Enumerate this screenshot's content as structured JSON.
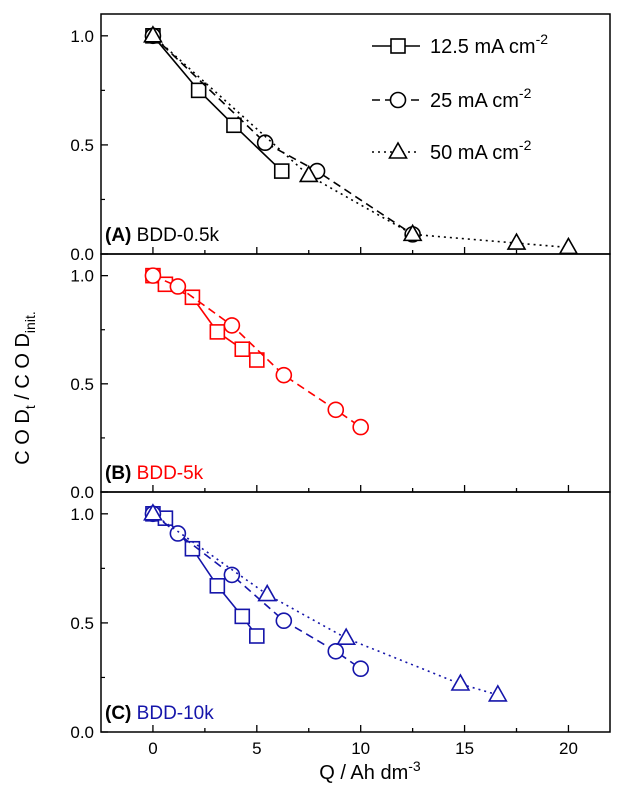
{
  "figure": {
    "x_label_main": "Q / Ah dm",
    "x_label_sup": "-3",
    "y_label_parts": {
      "a": "C O D",
      "a_sub": "t",
      "b": " / C O D",
      "b_sub": "init."
    }
  },
  "legend": [
    {
      "label_main": "12.5 mA cm",
      "label_sup": "-2",
      "style": "solid",
      "marker": "square"
    },
    {
      "label_main": "25 mA cm",
      "label_sup": "-2",
      "style": "dashed",
      "marker": "circle"
    },
    {
      "label_main": "50 mA cm",
      "label_sup": "-2",
      "style": "dotted",
      "marker": "triangle"
    }
  ],
  "chart_data": [
    {
      "type": "line",
      "panel_id": "(A)",
      "panel_name": "BDD-0.5k",
      "color": "#000000",
      "xlim": [
        -2.5,
        22
      ],
      "ylim": [
        0,
        1.1
      ],
      "y_ticks": [
        "0.0",
        "0.5",
        "1.0"
      ],
      "series": [
        {
          "name": "12.5 mA cm-2",
          "marker": "square",
          "style": "solid",
          "x": [
            0,
            2.2,
            3.9,
            6.2
          ],
          "y": [
            1.0,
            0.75,
            0.59,
            0.38
          ]
        },
        {
          "name": "25 mA cm-2",
          "marker": "circle",
          "style": "dashed",
          "x": [
            0,
            5.4,
            7.9,
            12.5
          ],
          "y": [
            1.0,
            0.51,
            0.38,
            0.09
          ]
        },
        {
          "name": "50 mA cm-2",
          "marker": "triangle",
          "style": "dotted",
          "x": [
            0,
            7.5,
            12.5,
            17.5,
            20.0
          ],
          "y": [
            1.0,
            0.36,
            0.09,
            0.05,
            0.03
          ]
        }
      ]
    },
    {
      "type": "line",
      "panel_id": "(B)",
      "panel_name": "BDD-5k",
      "color": "#ff0000",
      "xlim": [
        -2.5,
        22
      ],
      "ylim": [
        0,
        1.1
      ],
      "y_ticks": [
        "0.0",
        "0.5",
        "1.0"
      ],
      "series": [
        {
          "name": "12.5 mA cm-2",
          "marker": "square",
          "style": "solid",
          "x": [
            0,
            0.6,
            1.9,
            3.1,
            4.3,
            5.0
          ],
          "y": [
            1.0,
            0.96,
            0.9,
            0.74,
            0.66,
            0.61
          ]
        },
        {
          "name": "25 mA cm-2",
          "marker": "circle",
          "style": "dashed",
          "x": [
            0,
            1.2,
            3.8,
            6.3,
            8.8,
            10.0
          ],
          "y": [
            1.0,
            0.95,
            0.77,
            0.54,
            0.38,
            0.3
          ]
        }
      ]
    },
    {
      "type": "line",
      "panel_id": "(C)",
      "panel_name": "BDD-10k",
      "color": "#1515aa",
      "xlim": [
        -2.5,
        22
      ],
      "ylim": [
        0,
        1.1
      ],
      "y_ticks": [
        "0.0",
        "0.5",
        "1.0"
      ],
      "x_ticks": [
        "0",
        "5",
        "10",
        "15",
        "20"
      ],
      "series": [
        {
          "name": "12.5 mA cm-2",
          "marker": "square",
          "style": "solid",
          "x": [
            0,
            0.6,
            1.9,
            3.1,
            4.3,
            5.0
          ],
          "y": [
            1.0,
            0.98,
            0.84,
            0.67,
            0.53,
            0.44
          ]
        },
        {
          "name": "25 mA cm-2",
          "marker": "circle",
          "style": "dashed",
          "x": [
            0,
            1.2,
            3.8,
            6.3,
            8.8,
            10.0
          ],
          "y": [
            1.0,
            0.91,
            0.72,
            0.51,
            0.37,
            0.29
          ]
        },
        {
          "name": "50 mA cm-2",
          "marker": "triangle",
          "style": "dotted",
          "x": [
            0,
            5.5,
            9.3,
            14.8,
            16.6
          ],
          "y": [
            1.0,
            0.63,
            0.43,
            0.22,
            0.17
          ]
        }
      ]
    }
  ]
}
